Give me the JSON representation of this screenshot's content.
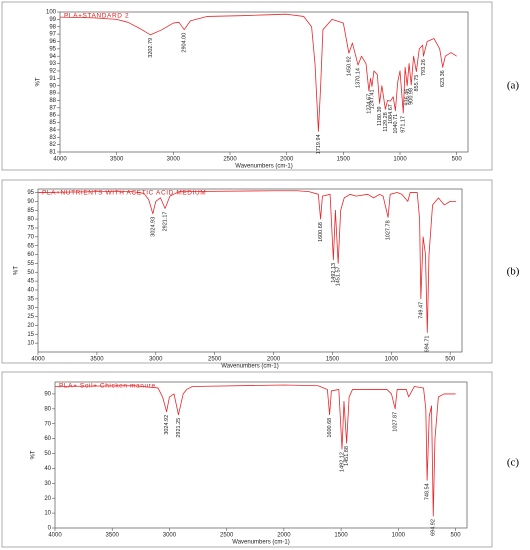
{
  "chart_data": [
    {
      "type": "line",
      "title": "PLA+STANDARD 2",
      "panel_label": "(a)",
      "ylabel": "%T",
      "xlabel": "Wavenumbers (cm-1)",
      "xlim": [
        4000,
        400
      ],
      "xticks": [
        4000,
        3500,
        3000,
        2500,
        2000,
        1500,
        1000,
        500
      ],
      "ylim": [
        81,
        100
      ],
      "yticks": [
        81,
        82,
        83,
        84,
        85,
        86,
        87,
        88,
        89,
        90,
        91,
        92,
        93,
        94,
        95,
        96,
        97,
        98,
        99,
        100
      ],
      "series": [
        {
          "color": "#e8262a",
          "x": [
            4000,
            3700,
            3500,
            3400,
            3300,
            3202.79,
            3100,
            3000,
            2950,
            2904.0,
            2850,
            2700,
            2400,
            2200,
            2000,
            1850,
            1780,
            1750,
            1719.94,
            1700,
            1680,
            1600,
            1500,
            1450.92,
            1420,
            1370.14,
            1340,
            1300,
            1274.67,
            1260,
            1247.41,
            1230,
            1200,
            1180.39,
            1160,
            1129.28,
            1110,
            1084.67,
            1060,
            1040.71,
            1020,
            1000,
            971.17,
            955,
            936.46,
            920,
            900.98,
            880,
            855.75,
            830,
            800,
            793.26,
            760,
            700,
            650,
            623.36,
            600,
            550,
            500
          ],
          "values": [
            99.3,
            99.2,
            99,
            98.6,
            97.8,
            96.9,
            97.6,
            98.5,
            98.6,
            97.6,
            98.8,
            99.4,
            99.5,
            99.6,
            99.7,
            99.4,
            98,
            93,
            83.8,
            90,
            97.6,
            99,
            98.5,
            94.4,
            95.8,
            92.8,
            94,
            93,
            89.3,
            91,
            89.9,
            92,
            91.5,
            87.6,
            90,
            86.8,
            88,
            87.9,
            88.5,
            86.6,
            90.5,
            92,
            86.3,
            92.5,
            90,
            93,
            90.1,
            94,
            91.9,
            95,
            95.5,
            94,
            96,
            96.4,
            95,
            92.5,
            94,
            94.5,
            94
          ]
        }
      ],
      "annotations": [
        {
          "text": "3202.79",
          "x": 3202.79
        },
        {
          "text": "2904.00",
          "x": 2904.0
        },
        {
          "text": "1719.94",
          "x": 1719.94
        },
        {
          "text": "1450.92",
          "x": 1450.92
        },
        {
          "text": "1370.14",
          "x": 1370.14
        },
        {
          "text": "1274.67",
          "x": 1274.67
        },
        {
          "text": "1247.41",
          "x": 1247.41
        },
        {
          "text": "1180.39",
          "x": 1180.39
        },
        {
          "text": "1129.28",
          "x": 1129.28
        },
        {
          "text": "1084.67",
          "x": 1084.67
        },
        {
          "text": "1040.71",
          "x": 1040.71
        },
        {
          "text": "971.17",
          "x": 971.17
        },
        {
          "text": "936.46",
          "x": 936.46
        },
        {
          "text": "900.98",
          "x": 900.98
        },
        {
          "text": "855.75",
          "x": 855.75
        },
        {
          "text": "793.26",
          "x": 793.26
        },
        {
          "text": "623.36",
          "x": 623.36
        }
      ]
    },
    {
      "type": "line",
      "title": "PLA+NUTRIENTS WITH ACETIC ACID MEDIUM",
      "panel_label": "(b)",
      "ylabel": "%T",
      "xlabel": "Wavenumbers (cm-1)",
      "xlim": [
        4000,
        400
      ],
      "xticks": [
        4000,
        3500,
        3000,
        2500,
        2000,
        1500,
        1000,
        500
      ],
      "ylim": [
        5,
        97
      ],
      "yticks": [
        10,
        15,
        20,
        25,
        30,
        35,
        40,
        45,
        50,
        55,
        60,
        65,
        70,
        75,
        80,
        85,
        90,
        95
      ],
      "series": [
        {
          "color": "#e8262a",
          "x": [
            4000,
            3500,
            3200,
            3100,
            3060,
            3024.93,
            3000,
            2960,
            2921.17,
            2880,
            2850,
            2800,
            2000,
            1800,
            1700,
            1620,
            1600.68,
            1585,
            1520,
            1492.13,
            1475,
            1451.57,
            1430,
            1400,
            1350,
            1300,
            1200,
            1150,
            1100,
            1070,
            1027.78,
            1010,
            950,
            910,
            860,
            840,
            780,
            760,
            749.47,
            730,
            710,
            694.71,
            680,
            650,
            600,
            550,
            500,
            450
          ],
          "values": [
            95,
            95.5,
            95.5,
            94.5,
            91,
            83,
            90,
            92,
            86,
            93,
            94,
            95.5,
            96,
            96,
            95.5,
            94,
            80,
            93,
            94,
            57,
            85,
            55,
            85,
            92,
            94,
            93,
            94,
            92,
            94,
            93,
            81,
            94,
            95,
            94,
            90,
            95,
            95,
            80,
            35,
            70,
            60,
            16,
            60,
            88,
            92,
            88,
            90,
            90
          ]
        }
      ],
      "annotations": [
        {
          "text": "3024.93",
          "x": 3024.93
        },
        {
          "text": "2921.17",
          "x": 2921.17
        },
        {
          "text": "1600.68",
          "x": 1600.68
        },
        {
          "text": "1492.13",
          "x": 1492.13
        },
        {
          "text": "1451.57",
          "x": 1451.57
        },
        {
          "text": "1027.78",
          "x": 1027.78
        },
        {
          "text": "749.47",
          "x": 749.47
        },
        {
          "text": "694.71",
          "x": 694.71
        }
      ]
    },
    {
      "type": "line",
      "title": "PLA+ Soil+ Chicken manure",
      "panel_label": "(c)",
      "ylabel": "%T",
      "xlabel": "Wavenumbers (cm-1)",
      "xlim": [
        4000,
        400
      ],
      "xticks": [
        4000,
        3500,
        3000,
        2500,
        2000,
        1500,
        1000,
        500
      ],
      "ylim": [
        0,
        98
      ],
      "yticks": [
        0,
        10,
        20,
        30,
        40,
        50,
        60,
        70,
        80,
        90
      ],
      "series": [
        {
          "color": "#e8262a",
          "x": [
            4000,
            3300,
            3100,
            3060,
            3024.92,
            3000,
            2960,
            2921.25,
            2880,
            2850,
            2800,
            2000,
            1700,
            1620,
            1600.68,
            1585,
            1520,
            1492.12,
            1475,
            1451.88,
            1430,
            1400,
            1200,
            1100,
            1060,
            1027.87,
            1010,
            930,
            910,
            860,
            780,
            760,
            748.54,
            730,
            710,
            694.92,
            680,
            650,
            600,
            500
          ],
          "values": [
            95,
            95.5,
            94,
            88,
            78,
            88,
            90,
            76,
            90,
            93,
            95,
            96,
            95.5,
            93,
            76,
            92,
            93,
            53,
            85,
            57,
            88,
            93,
            93,
            93,
            90,
            80,
            93,
            93,
            88,
            95,
            94,
            80,
            32,
            75,
            82,
            8,
            60,
            88,
            90,
            90
          ]
        }
      ],
      "annotations": [
        {
          "text": "3024.92",
          "x": 3024.92
        },
        {
          "text": "2921.25",
          "x": 2921.25
        },
        {
          "text": "1600.68",
          "x": 1600.68
        },
        {
          "text": "1492.12",
          "x": 1492.12
        },
        {
          "text": "1451.88",
          "x": 1451.88
        },
        {
          "text": "1027.87",
          "x": 1027.87
        },
        {
          "text": "748.54",
          "x": 748.54
        },
        {
          "text": "694.92",
          "x": 694.92
        }
      ]
    }
  ]
}
